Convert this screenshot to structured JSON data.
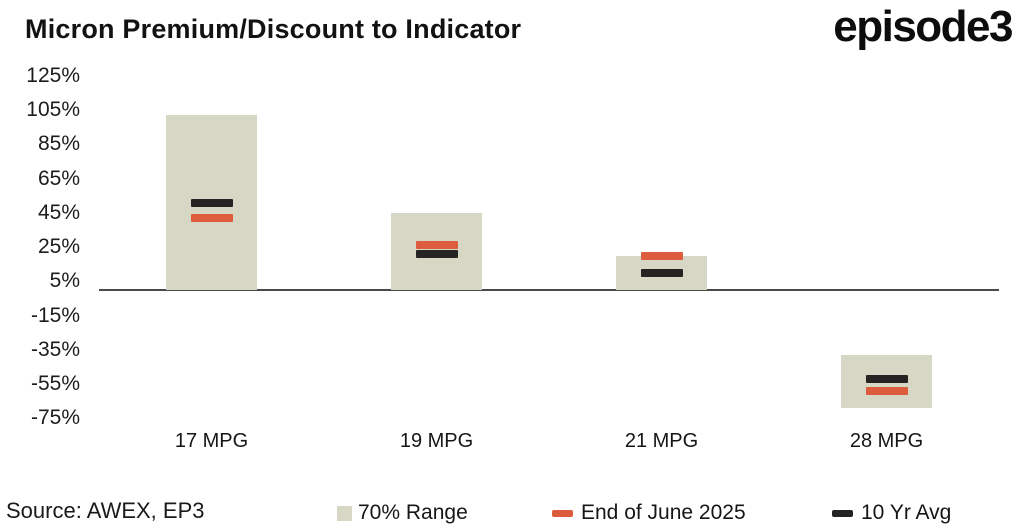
{
  "header": {
    "title": "Micron Premium/Discount to Indicator",
    "logo_text": "episode3"
  },
  "footer": {
    "source": "Source: AWEX, EP3"
  },
  "legend": [
    {
      "label": "70% Range",
      "swatch": "square",
      "color": "#d6d8c5"
    },
    {
      "label": "End of June 2025",
      "swatch": "dash",
      "color": "#de5c3e"
    },
    {
      "label": "10 Yr Avg",
      "swatch": "dash",
      "color": "#262422"
    }
  ],
  "colors": {
    "range_bar": "#d6d8c5",
    "end_of_june": "#de5c3e",
    "ten_yr_avg": "#262422",
    "axis_line": "#4a4a4a"
  },
  "chart_data": {
    "type": "bar",
    "title": "Micron Premium/Discount to Indicator",
    "categories": [
      "17 MPG",
      "19 MPG",
      "21 MPG",
      "28 MPG"
    ],
    "series": [
      {
        "name": "70% Range",
        "style": "range-bar",
        "color": "#d6d8c5",
        "ranges_pct": [
          [
            0,
            102
          ],
          [
            0,
            45
          ],
          [
            0,
            20
          ],
          [
            -69,
            -38
          ]
        ]
      },
      {
        "name": "End of June 2025",
        "style": "dash-marker",
        "color": "#de5c3e",
        "values_pct": [
          42,
          26,
          20,
          -59
        ]
      },
      {
        "name": "10 Yr Avg",
        "style": "dash-marker",
        "color": "#262422",
        "values_pct": [
          51,
          21,
          10,
          -52
        ]
      }
    ],
    "xlabel": "",
    "ylabel": "",
    "yticks_pct": [
      125,
      105,
      85,
      65,
      45,
      25,
      5,
      -15,
      -35,
      -55,
      -75
    ],
    "ytick_format": "percent",
    "ylim_pct": [
      -85,
      135
    ],
    "grid": false,
    "legend_position": "bottom",
    "source": "Source: AWEX, EP3"
  }
}
